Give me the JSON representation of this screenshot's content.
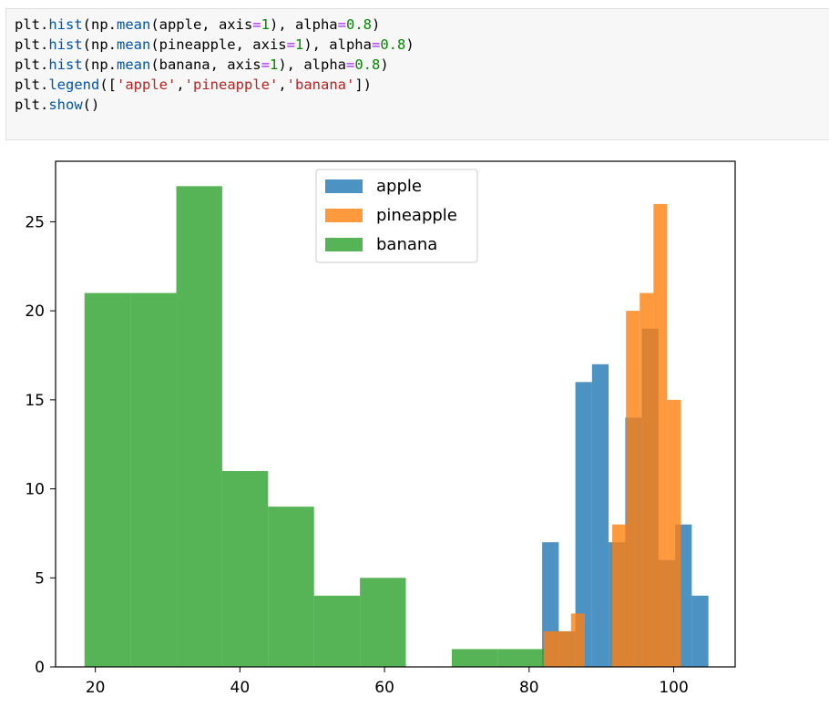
{
  "code_cell": {
    "lines": [
      {
        "tokens": [
          {
            "t": "plt.",
            "k": "txt"
          },
          {
            "t": "hist",
            "k": "fn"
          },
          {
            "t": "(np.",
            "k": "txt"
          },
          {
            "t": "mean",
            "k": "fn"
          },
          {
            "t": "(apple, axis",
            "k": "txt"
          },
          {
            "t": "=",
            "k": "op"
          },
          {
            "t": "1",
            "k": "num"
          },
          {
            "t": "), alpha",
            "k": "txt"
          },
          {
            "t": "=",
            "k": "op"
          },
          {
            "t": "0.8",
            "k": "num"
          },
          {
            "t": ")",
            "k": "txt"
          }
        ]
      },
      {
        "tokens": [
          {
            "t": "plt.",
            "k": "txt"
          },
          {
            "t": "hist",
            "k": "fn"
          },
          {
            "t": "(np.",
            "k": "txt"
          },
          {
            "t": "mean",
            "k": "fn"
          },
          {
            "t": "(pineapple, axis",
            "k": "txt"
          },
          {
            "t": "=",
            "k": "op"
          },
          {
            "t": "1",
            "k": "num"
          },
          {
            "t": "), alpha",
            "k": "txt"
          },
          {
            "t": "=",
            "k": "op"
          },
          {
            "t": "0.8",
            "k": "num"
          },
          {
            "t": ")",
            "k": "txt"
          }
        ]
      },
      {
        "tokens": [
          {
            "t": "plt.",
            "k": "txt"
          },
          {
            "t": "hist",
            "k": "fn"
          },
          {
            "t": "(np.",
            "k": "txt"
          },
          {
            "t": "mean",
            "k": "fn"
          },
          {
            "t": "(banana, axis",
            "k": "txt"
          },
          {
            "t": "=",
            "k": "op"
          },
          {
            "t": "1",
            "k": "num"
          },
          {
            "t": "), alpha",
            "k": "txt"
          },
          {
            "t": "=",
            "k": "op"
          },
          {
            "t": "0.8",
            "k": "num"
          },
          {
            "t": ")",
            "k": "txt"
          }
        ]
      },
      {
        "tokens": [
          {
            "t": "plt.",
            "k": "txt"
          },
          {
            "t": "legend",
            "k": "fn"
          },
          {
            "t": "([",
            "k": "txt"
          },
          {
            "t": "'apple'",
            "k": "str"
          },
          {
            "t": ",",
            "k": "txt"
          },
          {
            "t": "'pineapple'",
            "k": "str"
          },
          {
            "t": ",",
            "k": "txt"
          },
          {
            "t": "'banana'",
            "k": "str"
          },
          {
            "t": "])",
            "k": "txt"
          }
        ]
      },
      {
        "tokens": [
          {
            "t": "plt.",
            "k": "txt"
          },
          {
            "t": "show",
            "k": "fn"
          },
          {
            "t": "()",
            "k": "txt"
          }
        ]
      }
    ]
  },
  "chart_data": {
    "type": "bar",
    "subtype": "overlapping-histogram",
    "alpha": 0.8,
    "xlim": [
      14.5,
      108.5
    ],
    "ylim": [
      0,
      28.4
    ],
    "xticks": [
      20,
      40,
      60,
      80,
      100
    ],
    "yticks": [
      0,
      5,
      10,
      15,
      20,
      25
    ],
    "grid": false,
    "legend_position": "top-center",
    "series": [
      {
        "name": "apple",
        "color": "#1f77b4",
        "bin_edges": [
          81.8,
          84.1,
          86.4,
          88.7,
          91.0,
          93.3,
          95.6,
          97.9,
          100.2,
          102.5,
          104.8
        ],
        "counts": [
          7,
          2,
          16,
          17,
          7,
          14,
          19,
          6,
          8,
          4
        ]
      },
      {
        "name": "pineapple",
        "color": "#ff7f0e",
        "bin_edges": [
          82.0,
          83.9,
          85.8,
          87.7,
          89.6,
          91.5,
          93.4,
          95.3,
          97.2,
          99.1,
          101.0
        ],
        "counts": [
          2,
          2,
          3,
          0,
          0,
          8,
          20,
          21,
          26,
          15
        ]
      },
      {
        "name": "banana",
        "color": "#2ca02c",
        "bin_edges": [
          18.5,
          24.85,
          31.2,
          37.55,
          43.9,
          50.25,
          56.6,
          62.95,
          69.3,
          75.65,
          82.0
        ],
        "counts": [
          21,
          21,
          27,
          11,
          9,
          4,
          5,
          0,
          1,
          1
        ]
      }
    ],
    "legend": [
      "apple",
      "pineapple",
      "banana"
    ]
  }
}
